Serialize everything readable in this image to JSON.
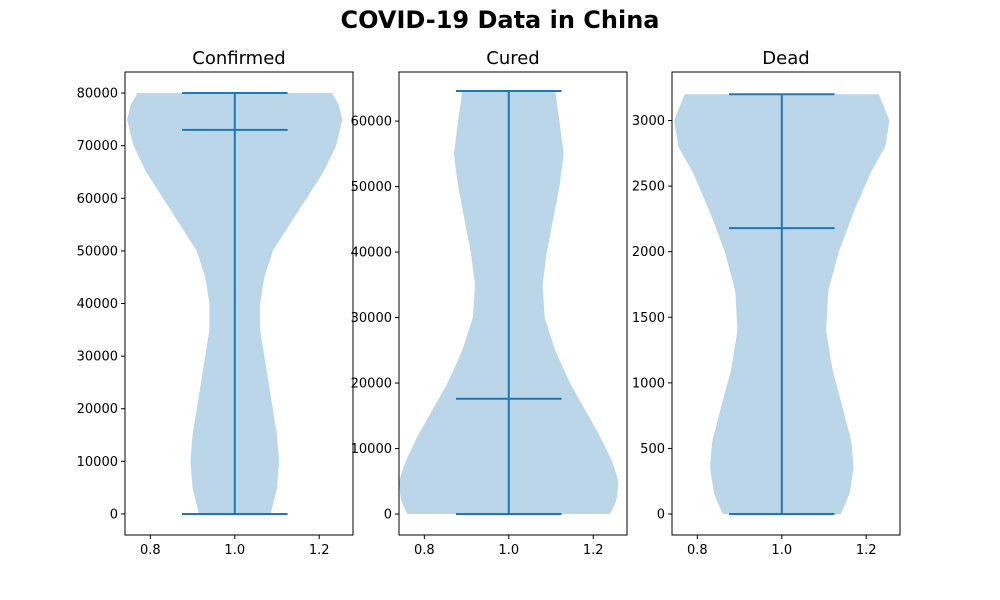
{
  "figure": {
    "title": "COVID-19 Data in China"
  },
  "chart_data": [
    {
      "type": "violin",
      "title": "Confirmed",
      "position": 1.0,
      "xlim": [
        0.74,
        1.28
      ],
      "xticks": [
        0.8,
        1.0,
        1.2
      ],
      "xtick_labels": [
        "0.8",
        "1.0",
        "1.2"
      ],
      "ylim": [
        -4000,
        84000
      ],
      "yticks": [
        0,
        10000,
        20000,
        30000,
        40000,
        50000,
        60000,
        70000,
        80000
      ],
      "ytick_labels": [
        "0",
        "10000",
        "20000",
        "30000",
        "40000",
        "50000",
        "60000",
        "70000",
        "80000"
      ],
      "stats": {
        "min": 0,
        "median": 73000,
        "max": 80000
      },
      "density_profile": [
        [
          0,
          0.085
        ],
        [
          5000,
          0.1
        ],
        [
          10000,
          0.105
        ],
        [
          15000,
          0.1
        ],
        [
          20000,
          0.09
        ],
        [
          25000,
          0.08
        ],
        [
          30000,
          0.07
        ],
        [
          35000,
          0.06
        ],
        [
          40000,
          0.06
        ],
        [
          45000,
          0.07
        ],
        [
          50000,
          0.09
        ],
        [
          55000,
          0.13
        ],
        [
          60000,
          0.17
        ],
        [
          65000,
          0.21
        ],
        [
          70000,
          0.24
        ],
        [
          75000,
          0.255
        ],
        [
          78000,
          0.245
        ],
        [
          80000,
          0.23
        ]
      ],
      "color": "#bad6e8",
      "line_color": "#1f77b4"
    },
    {
      "type": "violin",
      "title": "Cured",
      "position": 1.0,
      "xlim": [
        0.74,
        1.28
      ],
      "xticks": [
        0.8,
        1.0,
        1.2
      ],
      "xtick_labels": [
        "0.8",
        "1.0",
        "1.2"
      ],
      "ylim": [
        -3200,
        67500
      ],
      "yticks": [
        0,
        10000,
        20000,
        30000,
        40000,
        50000,
        60000
      ],
      "ytick_labels": [
        "0",
        "10000",
        "20000",
        "30000",
        "40000",
        "50000",
        "60000"
      ],
      "stats": {
        "min": 0,
        "median": 17600,
        "max": 64600
      },
      "density_profile": [
        [
          0,
          0.24
        ],
        [
          2000,
          0.255
        ],
        [
          5000,
          0.26
        ],
        [
          8000,
          0.245
        ],
        [
          12000,
          0.215
        ],
        [
          16000,
          0.18
        ],
        [
          20000,
          0.145
        ],
        [
          25000,
          0.11
        ],
        [
          30000,
          0.085
        ],
        [
          35000,
          0.08
        ],
        [
          40000,
          0.09
        ],
        [
          45000,
          0.105
        ],
        [
          50000,
          0.12
        ],
        [
          55000,
          0.13
        ],
        [
          60000,
          0.12
        ],
        [
          64600,
          0.11
        ]
      ],
      "color": "#bad6e8",
      "line_color": "#1f77b4"
    },
    {
      "type": "violin",
      "title": "Dead",
      "position": 1.0,
      "xlim": [
        0.74,
        1.28
      ],
      "xticks": [
        0.8,
        1.0,
        1.2
      ],
      "xtick_labels": [
        "0.8",
        "1.0",
        "1.2"
      ],
      "ylim": [
        -160,
        3370
      ],
      "yticks": [
        0,
        500,
        1000,
        1500,
        2000,
        2500,
        3000
      ],
      "ytick_labels": [
        "0",
        "500",
        "1000",
        "1500",
        "2000",
        "2500",
        "3000"
      ],
      "stats": {
        "min": 0,
        "median": 2180,
        "max": 3200
      },
      "density_profile": [
        [
          0,
          0.14
        ],
        [
          150,
          0.16
        ],
        [
          350,
          0.17
        ],
        [
          550,
          0.165
        ],
        [
          800,
          0.145
        ],
        [
          1100,
          0.12
        ],
        [
          1400,
          0.105
        ],
        [
          1700,
          0.11
        ],
        [
          2000,
          0.135
        ],
        [
          2300,
          0.17
        ],
        [
          2600,
          0.21
        ],
        [
          2800,
          0.245
        ],
        [
          3000,
          0.255
        ],
        [
          3200,
          0.23
        ]
      ],
      "color": "#bad6e8",
      "line_color": "#1f77b4"
    }
  ]
}
